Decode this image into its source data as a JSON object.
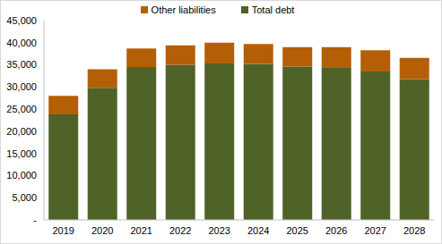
{
  "chart_data": {
    "type": "bar",
    "stacked": true,
    "legend": "top",
    "grid": false,
    "categories": [
      "2019",
      "2020",
      "2021",
      "2022",
      "2023",
      "2024",
      "2025",
      "2026",
      "2027",
      "2028"
    ],
    "series": [
      {
        "name": "Total debt",
        "color": "#4f6228",
        "values": [
          23800,
          29800,
          34500,
          35000,
          35300,
          35200,
          34600,
          34300,
          33500,
          31800
        ]
      },
      {
        "name": "Other liabilities",
        "color": "#b45f06",
        "values": [
          4200,
          4200,
          4200,
          4400,
          4700,
          4500,
          4400,
          4700,
          4800,
          4800
        ]
      }
    ],
    "ylim": [
      0,
      45000
    ],
    "yticks": [
      {
        "value": 0,
        "label": "-"
      },
      {
        "value": 5000,
        "label": "5,000"
      },
      {
        "value": 10000,
        "label": "10,000"
      },
      {
        "value": 15000,
        "label": "15,000"
      },
      {
        "value": 20000,
        "label": "20,000"
      },
      {
        "value": 25000,
        "label": "25,000"
      },
      {
        "value": 30000,
        "label": "30,000"
      },
      {
        "value": 35000,
        "label": "35,000"
      },
      {
        "value": 40000,
        "label": "40,000"
      },
      {
        "value": 45000,
        "label": "45,000"
      }
    ]
  }
}
